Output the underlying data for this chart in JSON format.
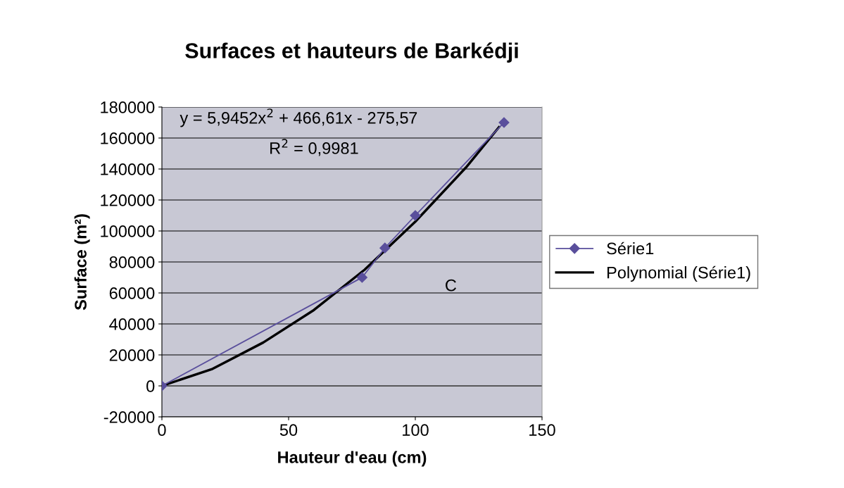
{
  "chart_data": {
    "type": "line",
    "title": "Surfaces et hauteurs de Barkédji",
    "xlabel": "Hauteur d'eau (cm)",
    "ylabel": "Surface (m²)",
    "series": [
      {
        "name": "Série1",
        "color": "#5a4f9c",
        "x": [
          0,
          79,
          88,
          100,
          135
        ],
        "values": [
          0,
          70000,
          89000,
          110000,
          170000
        ],
        "marker": "diamond"
      },
      {
        "name": "Polynomial (Série1)",
        "color": "#000000",
        "type": "line",
        "marker": "none",
        "x": [
          0,
          20,
          40,
          60,
          80,
          100,
          120,
          133
        ],
        "values": [
          0,
          11000,
          28000,
          49000,
          75000,
          106000,
          141000,
          167000
        ]
      }
    ],
    "annotations": [
      "y = 5,9452x$^{2}$ + 466,61x - 275,57",
      "R$^{2}$ = 0,9981",
      "C"
    ],
    "xlim": [
      0,
      150
    ],
    "xticks": [
      0,
      50,
      100,
      150
    ],
    "ylim": [
      -20000,
      180000
    ],
    "yticks": [
      -20000,
      0,
      20000,
      40000,
      60000,
      80000,
      100000,
      120000,
      140000,
      160000,
      180000
    ],
    "grid": "y",
    "legend": "right",
    "line_style": "solid"
  }
}
